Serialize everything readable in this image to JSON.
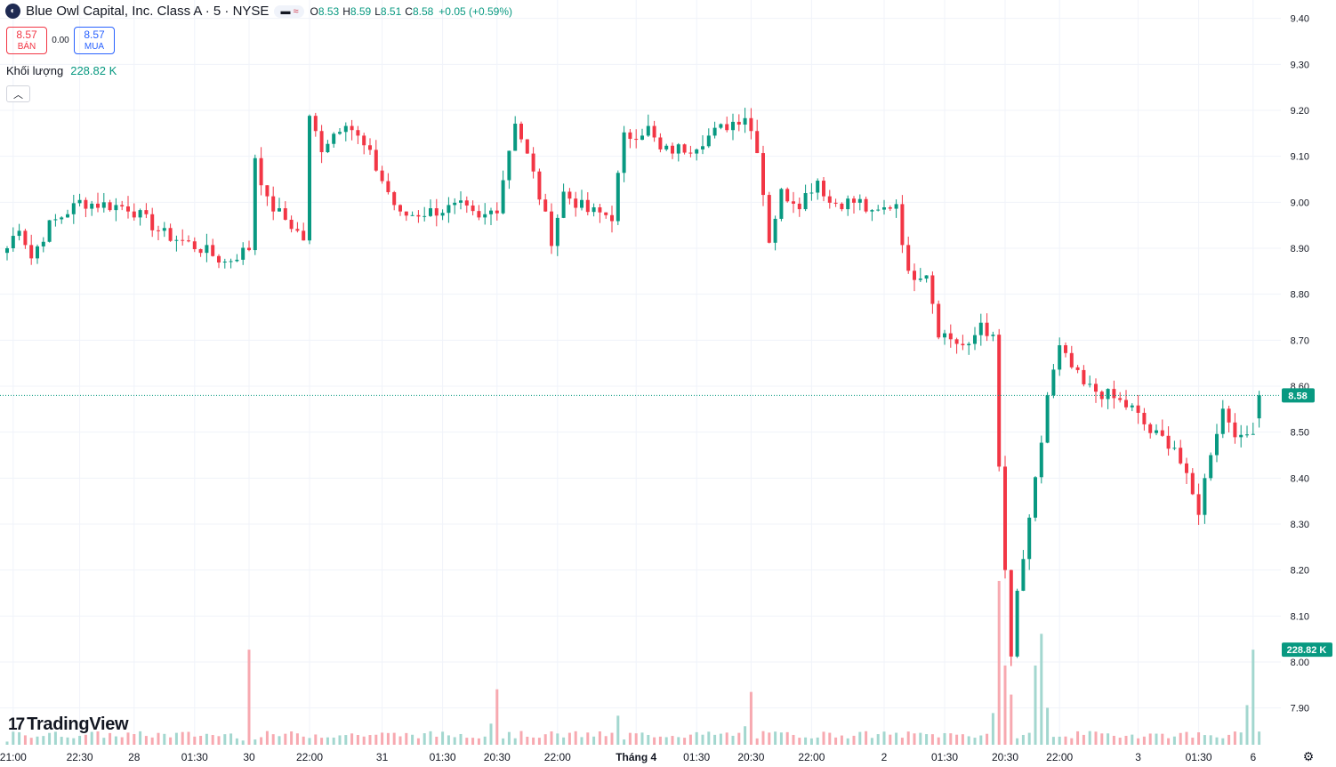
{
  "header": {
    "symbol_title": "Blue Owl Capital, Inc. Class A · 5 · NYSE",
    "logo_icon": "blue-owl-logo-icon",
    "tag_icons": [
      "minus-icon",
      "approx-icon"
    ],
    "ohlc": {
      "o_label": "O",
      "o_value": "8.53",
      "h_label": "H",
      "h_value": "8.59",
      "l_label": "L",
      "l_value": "8.51",
      "c_label": "C",
      "c_value": "8.58",
      "change": "+0.05 (+0.59%)"
    },
    "sell": {
      "price": "8.57",
      "label": "BÁN"
    },
    "spread": "0.00",
    "buy": {
      "price": "8.57",
      "label": "MUA"
    },
    "volume_label": "Khối lượng",
    "volume_value": "228.82 K",
    "collapse_icon": "chevron-up-icon"
  },
  "branding": {
    "logo_mark": "17",
    "logo_text": "TradingView"
  },
  "settings_icon": "gear-icon",
  "colors": {
    "up": "#089981",
    "down": "#f23645",
    "vol_up": "#a3d7cf",
    "vol_down": "#f7a9b0",
    "grid": "#f0f3fa",
    "last_price": "#089981"
  },
  "chart_data": {
    "type": "candlestick",
    "title": "Blue Owl Capital, Inc. Class A · 5 · NYSE",
    "ylim": [
      7.82,
      9.44
    ],
    "y_ticks": [
      "9.40",
      "9.30",
      "9.20",
      "9.10",
      "9.00",
      "8.90",
      "8.80",
      "8.70",
      "8.60",
      "8.50",
      "8.40",
      "8.30",
      "8.20",
      "8.10",
      "8.00",
      "7.90"
    ],
    "x_ticks": [
      {
        "label": "21:00",
        "bar": 1
      },
      {
        "label": "22:30",
        "bar": 12
      },
      {
        "label": "28",
        "bar": 21
      },
      {
        "label": "01:30",
        "bar": 31
      },
      {
        "label": "30",
        "bar": 40
      },
      {
        "label": "22:00",
        "bar": 50
      },
      {
        "label": "31",
        "bar": 62
      },
      {
        "label": "01:30",
        "bar": 72
      },
      {
        "label": "20:30",
        "bar": 81
      },
      {
        "label": "22:00",
        "bar": 91
      },
      {
        "label": "Tháng 4",
        "bar": 104
      },
      {
        "label": "01:30",
        "bar": 114
      },
      {
        "label": "20:30",
        "bar": 123
      },
      {
        "label": "22:00",
        "bar": 133
      },
      {
        "label": "2",
        "bar": 145
      },
      {
        "label": "01:30",
        "bar": 155
      },
      {
        "label": "20:30",
        "bar": 165
      },
      {
        "label": "22:00",
        "bar": 174
      },
      {
        "label": "3",
        "bar": 187
      },
      {
        "label": "01:30",
        "bar": 197
      },
      {
        "label": "6",
        "bar": 206
      }
    ],
    "grid": true,
    "last_price": "8.58",
    "last_volume": "228.82 K",
    "key_points": [
      [
        0,
        8.9
      ],
      [
        2,
        8.95
      ],
      [
        4,
        8.88
      ],
      [
        7,
        8.95
      ],
      [
        12,
        9.0
      ],
      [
        20,
        8.99
      ],
      [
        26,
        8.93
      ],
      [
        32,
        8.9
      ],
      [
        36,
        8.87
      ],
      [
        40,
        8.9
      ],
      [
        41,
        9.1
      ],
      [
        43,
        9.0
      ],
      [
        47,
        8.95
      ],
      [
        49,
        8.92
      ],
      [
        50,
        9.18
      ],
      [
        52,
        9.12
      ],
      [
        56,
        9.18
      ],
      [
        60,
        9.1
      ],
      [
        65,
        8.97
      ],
      [
        70,
        8.98
      ],
      [
        75,
        8.99
      ],
      [
        78,
        8.96
      ],
      [
        81,
        8.99
      ],
      [
        84,
        9.18
      ],
      [
        87,
        9.06
      ],
      [
        90,
        8.92
      ],
      [
        92,
        9.02
      ],
      [
        96,
        8.98
      ],
      [
        100,
        8.97
      ],
      [
        102,
        9.14
      ],
      [
        106,
        9.16
      ],
      [
        108,
        9.11
      ],
      [
        113,
        9.12
      ],
      [
        118,
        9.16
      ],
      [
        122,
        9.19
      ],
      [
        124,
        9.12
      ],
      [
        126,
        8.92
      ],
      [
        128,
        9.02
      ],
      [
        131,
        9.0
      ],
      [
        134,
        9.05
      ],
      [
        136,
        9.0
      ],
      [
        141,
        9.0
      ],
      [
        143,
        8.97
      ],
      [
        147,
        9.0
      ],
      [
        149,
        8.84
      ],
      [
        152,
        8.85
      ],
      [
        154,
        8.72
      ],
      [
        159,
        8.68
      ],
      [
        161,
        8.74
      ],
      [
        163,
        8.7
      ],
      [
        164,
        8.42
      ],
      [
        165,
        8.2
      ],
      [
        166,
        8.0
      ],
      [
        167,
        8.15
      ],
      [
        169,
        8.3
      ],
      [
        171,
        8.48
      ],
      [
        172,
        8.58
      ],
      [
        174,
        8.68
      ],
      [
        178,
        8.6
      ],
      [
        182,
        8.58
      ],
      [
        186,
        8.55
      ],
      [
        189,
        8.5
      ],
      [
        193,
        8.47
      ],
      [
        196,
        8.36
      ],
      [
        197,
        8.33
      ],
      [
        199,
        8.46
      ],
      [
        201,
        8.55
      ],
      [
        204,
        8.48
      ],
      [
        206,
        8.51
      ],
      [
        207,
        8.58
      ]
    ],
    "volume_points": [
      [
        0,
        6
      ],
      [
        39,
        8
      ],
      [
        40,
        180
      ],
      [
        41,
        10
      ],
      [
        80,
        40
      ],
      [
        81,
        105
      ],
      [
        82,
        12
      ],
      [
        101,
        55
      ],
      [
        102,
        10
      ],
      [
        122,
        35
      ],
      [
        123,
        100
      ],
      [
        124,
        12
      ],
      [
        163,
        60
      ],
      [
        164,
        310
      ],
      [
        165,
        150
      ],
      [
        166,
        95
      ],
      [
        170,
        150
      ],
      [
        171,
        210
      ],
      [
        172,
        70
      ],
      [
        173,
        15
      ],
      [
        205,
        75
      ],
      [
        206,
        180
      ]
    ],
    "volume_max": 320
  }
}
